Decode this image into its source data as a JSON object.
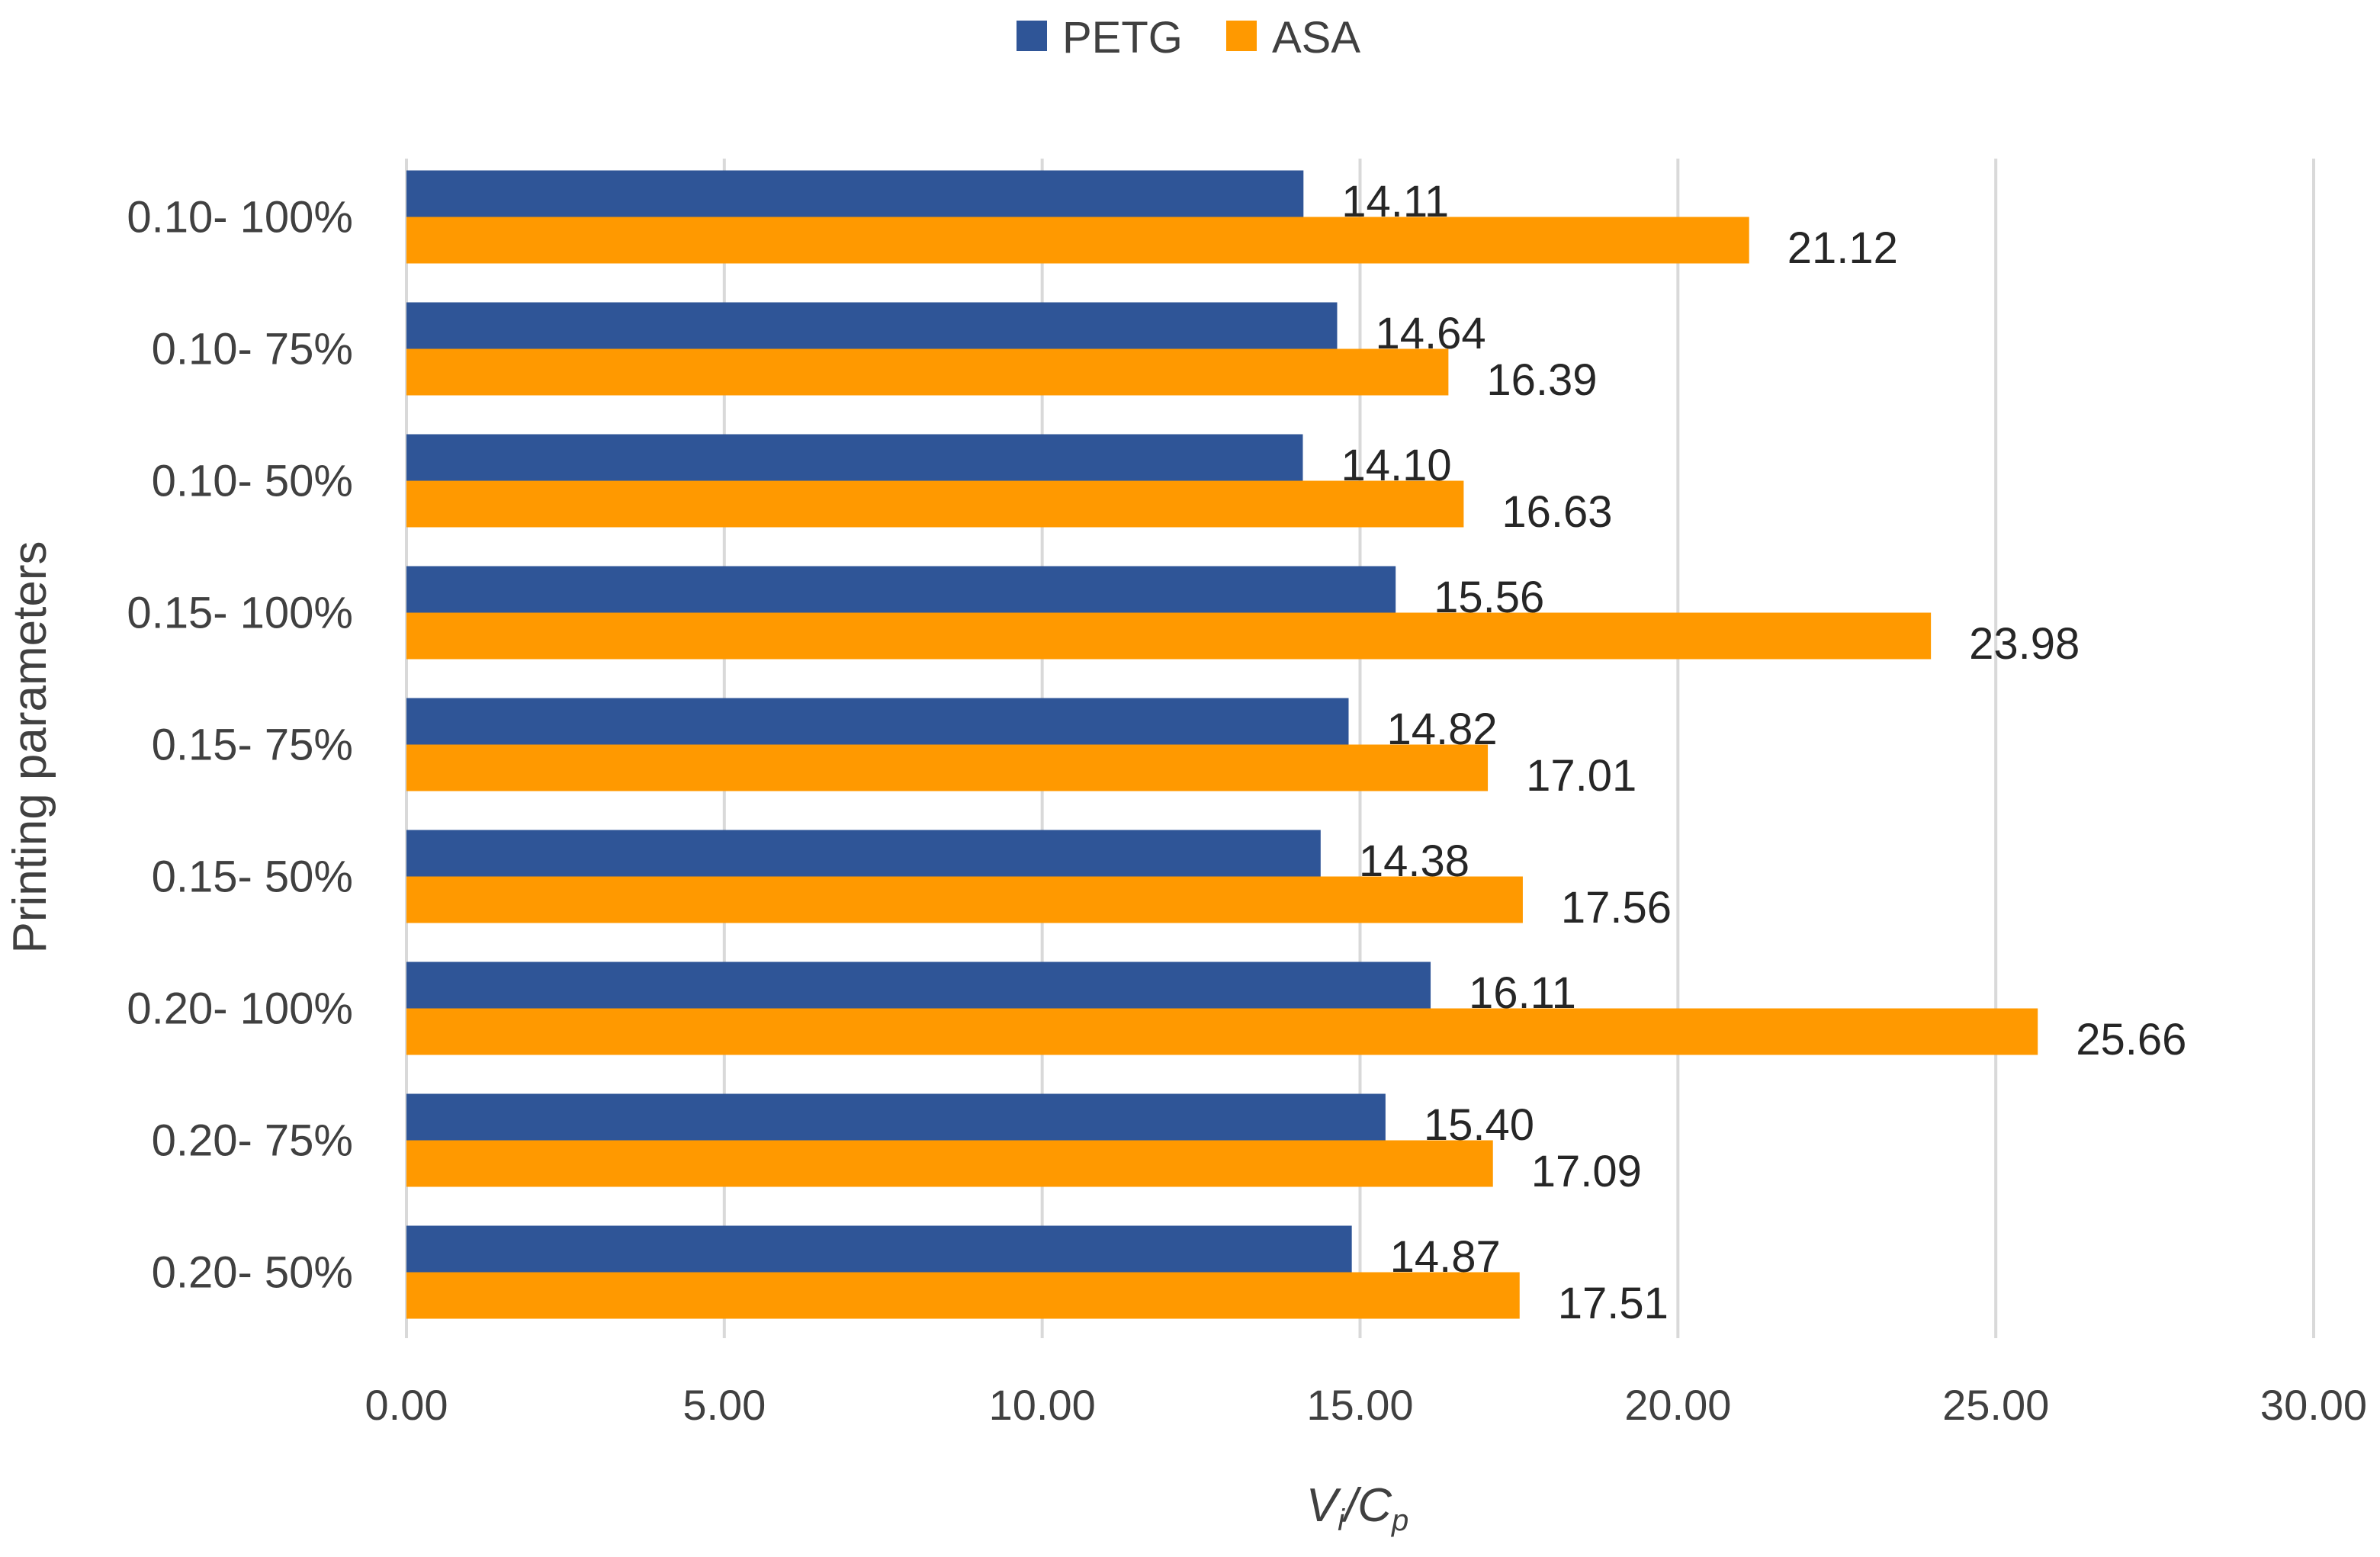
{
  "chart_data": {
    "type": "bar",
    "orientation": "horizontal",
    "title": "",
    "categories": [
      "0.10- 100%",
      "0.10- 75%",
      "0.10- 50%",
      "0.15- 100%",
      "0.15- 75%",
      "0.15- 50%",
      "0.20- 100%",
      "0.20- 75%",
      "0.20- 50%"
    ],
    "series": [
      {
        "name": "PETG",
        "color": "#2f5597",
        "values": [
          14.11,
          14.64,
          14.1,
          15.56,
          14.82,
          14.38,
          16.11,
          15.4,
          14.87
        ]
      },
      {
        "name": "ASA",
        "color": "#ff9900",
        "values": [
          21.12,
          16.39,
          16.63,
          23.98,
          17.01,
          17.56,
          25.66,
          17.09,
          17.51
        ]
      }
    ],
    "xlabel": {
      "main": "V",
      "sub1": "i",
      "mid": "/C",
      "sub2": "p"
    },
    "ylabel": "Printing parameters",
    "xlim": [
      0,
      30
    ],
    "xticks": [
      "0.00",
      "5.00",
      "10.00",
      "15.00",
      "20.00",
      "25.00",
      "30.00"
    ],
    "grid": true,
    "legend_position": "top-center"
  }
}
